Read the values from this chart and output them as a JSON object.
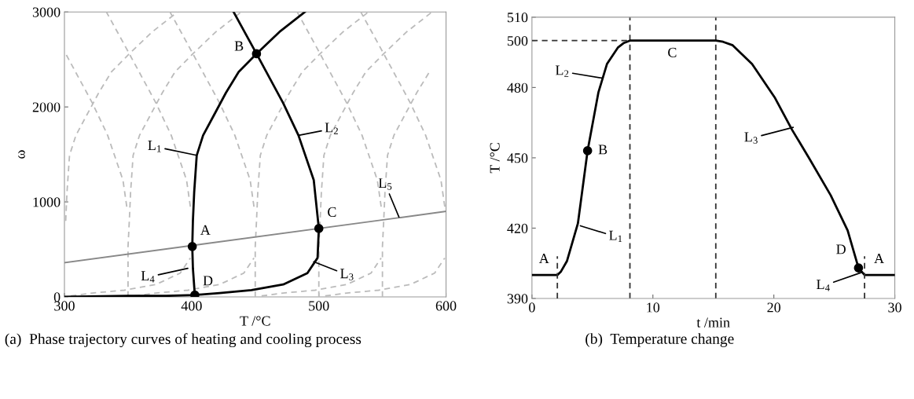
{
  "chart_data": [
    {
      "type": "line",
      "xlabel": "T /°C",
      "ylabel": "ω",
      "xlim": [
        300,
        600
      ],
      "ylim": [
        0,
        3000
      ],
      "xticks": [
        300,
        400,
        500,
        600
      ],
      "yticks": [
        0,
        1000,
        2000,
        3000
      ],
      "line_style": "solid",
      "series": [
        {
          "x": [
            301,
            302,
            304,
            309,
            317,
            327,
            337,
            351,
            369,
            389
          ],
          "values": [
            800,
            1100,
            1490,
            1700,
            1900,
            2150,
            2370,
            2560,
            2790,
            3000
          ],
          "color": "#bbbbbb",
          "line_style": "dashed"
        },
        {
          "x": [
            350,
            350,
            351,
            352,
            354,
            359,
            367,
            377,
            387,
            401,
            419,
            439
          ],
          "values": [
            0,
            530,
            800,
            1100,
            1490,
            1700,
            1900,
            2150,
            2370,
            2560,
            2790,
            3000
          ],
          "color": "#bbbbbb",
          "line_style": "dashed"
        },
        {
          "x": [
            450,
            450,
            451,
            452,
            454,
            459,
            467,
            477,
            487,
            501,
            519,
            539
          ],
          "values": [
            0,
            530,
            800,
            1100,
            1490,
            1700,
            1900,
            2150,
            2370,
            2560,
            2790,
            3000
          ],
          "color": "#bbbbbb",
          "line_style": "dashed"
        },
        {
          "x": [
            500,
            500,
            501,
            502,
            504,
            509,
            517,
            527,
            537,
            551,
            569,
            589
          ],
          "values": [
            0,
            530,
            800,
            1100,
            1490,
            1700,
            1900,
            2150,
            2370,
            2560,
            2790,
            3000
          ],
          "color": "#bbbbbb",
          "line_style": "dashed"
        },
        {
          "x": [
            550,
            550,
            551,
            552,
            554,
            559,
            567,
            577,
            587
          ],
          "values": [
            0,
            530,
            800,
            1100,
            1490,
            1700,
            1900,
            2150,
            2370
          ],
          "color": "#bbbbbb",
          "line_style": "dashed"
        },
        {
          "x": [
            349,
            346,
            334,
            322,
            301
          ],
          "values": [
            950,
            1230,
            1700,
            2040,
            2560
          ],
          "color": "#bbbbbb",
          "line_style": "dashed"
        },
        {
          "x": [
            399,
            396,
            384,
            372,
            351,
            333
          ],
          "values": [
            950,
            1230,
            1700,
            2040,
            2560,
            3000
          ],
          "color": "#bbbbbb",
          "line_style": "dashed"
        },
        {
          "x": [
            449,
            446,
            434,
            422,
            401,
            383
          ],
          "values": [
            950,
            1230,
            1700,
            2040,
            2560,
            3000
          ],
          "color": "#bbbbbb",
          "line_style": "dashed"
        },
        {
          "x": [
            549,
            546,
            534,
            522,
            501,
            483
          ],
          "values": [
            950,
            1230,
            1700,
            2040,
            2560,
            3000
          ],
          "color": "#bbbbbb",
          "line_style": "dashed"
        },
        {
          "x": [
            599,
            596,
            584,
            572,
            551,
            533
          ],
          "values": [
            950,
            1230,
            1700,
            2040,
            2560,
            3000
          ],
          "color": "#bbbbbb",
          "line_style": "dashed"
        },
        {
          "x": [
            305,
            322,
            347,
            372,
            391,
            399
          ],
          "values": [
            10,
            40,
            70,
            130,
            250,
            410
          ],
          "color": "#bbbbbb",
          "line_style": "dashed"
        },
        {
          "x": [
            355,
            372,
            397,
            422,
            441,
            449
          ],
          "values": [
            10,
            40,
            70,
            130,
            250,
            410
          ],
          "color": "#bbbbbb",
          "line_style": "dashed"
        },
        {
          "x": [
            455,
            472,
            497,
            522,
            541,
            549
          ],
          "values": [
            10,
            40,
            70,
            130,
            250,
            410
          ],
          "color": "#bbbbbb",
          "line_style": "dashed"
        },
        {
          "x": [
            505,
            522,
            547,
            572,
            591,
            599
          ],
          "values": [
            10,
            40,
            70,
            130,
            250,
            410
          ],
          "color": "#bbbbbb",
          "line_style": "dashed"
        },
        {
          "x": [
            300,
            600
          ],
          "values": [
            360,
            900
          ],
          "color": "#888888"
        },
        {
          "x": [
            400.5,
            401,
            402,
            404,
            409,
            417,
            427,
            437,
            451,
            469,
            489
          ],
          "values": [
            530,
            800,
            1100,
            1490,
            1700,
            1900,
            2150,
            2370,
            2560,
            2790,
            3000
          ],
          "color": "#000000"
        },
        {
          "x": [
            402.5,
            401,
            400.5
          ],
          "values": [
            20,
            300,
            530
          ],
          "color": "#000000"
        },
        {
          "x": [
            433,
            451,
            472,
            484,
            496,
            500
          ],
          "values": [
            3000,
            2560,
            2040,
            1700,
            1230,
            720
          ],
          "color": "#000000"
        },
        {
          "x": [
            300,
            350,
            380,
            402.5,
            422,
            447,
            472,
            491,
            499,
            500
          ],
          "values": [
            0,
            10,
            10,
            20,
            40,
            70,
            130,
            250,
            410,
            720
          ],
          "color": "#000000"
        },
        {
          "type": "scatter",
          "marker": "circle",
          "x": [
            400.5,
            451,
            500,
            402.5
          ],
          "values": [
            530,
            2560,
            720,
            20
          ],
          "color": "#000000"
        }
      ],
      "annotations": [
        {
          "text": "A",
          "x": 400.5,
          "y": 530
        },
        {
          "text": "B",
          "x": 451,
          "y": 2560
        },
        {
          "text": "C",
          "x": 500,
          "y": 720
        },
        {
          "text": "D",
          "x": 402.5,
          "y": 20
        },
        {
          "text": "L$_{1}$",
          "x": 404,
          "y": 1490
        },
        {
          "text": "L$_{2}$",
          "x": 484,
          "y": 1700
        },
        {
          "text": "L$_{3}$",
          "x": 496,
          "y": 370
        },
        {
          "text": "L$_{4}$",
          "x": 397,
          "y": 300
        },
        {
          "text": "L$_{5}$",
          "x": 563,
          "y": 840
        },
        "(a)  Phase trajectory curves of heating and cooling process"
      ]
    },
    {
      "type": "line",
      "xlabel": "t /min",
      "ylabel": "T /°C",
      "xlim": [
        0,
        30
      ],
      "ylim": [
        390,
        510
      ],
      "xticks": [
        0,
        10,
        20,
        30
      ],
      "yticks": [
        390,
        420,
        450,
        480,
        500,
        510
      ],
      "line_style": "solid",
      "series": [
        {
          "x": [
            0,
            2.1,
            2.4,
            2.9,
            3.8,
            4.6,
            5.5,
            6.2,
            7.1,
            7.6,
            8.1,
            15.2,
            15.8,
            16.6,
            18.2,
            20.1,
            21.5,
            22.9,
            24.7,
            26.1,
            27.0,
            27.5,
            30
          ],
          "values": [
            400,
            400,
            401.5,
            406,
            422,
            453,
            478,
            490,
            497,
            499,
            500,
            500,
            499.5,
            498,
            490,
            475.5,
            462,
            450,
            434,
            419,
            403,
            400,
            400
          ],
          "color": "#000000"
        },
        {
          "x": [
            0,
            8.1
          ],
          "values": [
            500,
            500
          ],
          "color": "#333333",
          "line_style": "dashed"
        },
        {
          "x": [
            2.1,
            2.1
          ],
          "values": [
            390,
            408
          ],
          "color": "#333333",
          "line_style": "dashed"
        },
        {
          "x": [
            27.5,
            27.5
          ],
          "values": [
            390,
            408
          ],
          "color": "#333333",
          "line_style": "dashed"
        },
        {
          "type": "scatter",
          "marker": "circle",
          "x": [
            4.6,
            27.0
          ],
          "values": [
            453,
            403
          ],
          "color": "#000000"
        }
      ],
      "ref_lines": [
        {
          "axis": "x",
          "value": 8.1,
          "color": "#333333",
          "line_style": "dashed"
        },
        {
          "axis": "x",
          "value": 15.2,
          "color": "#333333",
          "line_style": "dashed"
        }
      ],
      "annotations": [
        {
          "text": "A",
          "x": 1.0,
          "y": 400
        },
        {
          "text": "A",
          "x": 28.7,
          "y": 400
        },
        {
          "text": "C",
          "x": 11.6,
          "y": 500
        },
        {
          "text": "B",
          "x": 4.6,
          "y": 453
        },
        {
          "text": "D",
          "x": 27.0,
          "y": 403
        },
        {
          "text": "L$_{1}$",
          "x": 4.0,
          "y": 421
        },
        {
          "text": "L$_{2}$",
          "x": 5.8,
          "y": 484
        },
        {
          "text": "L$_{3}$",
          "x": 21.6,
          "y": 463
        },
        {
          "text": "L$_{4}$",
          "x": 27.2,
          "y": 401
        },
        "(b)  Temperature change"
      ]
    }
  ]
}
